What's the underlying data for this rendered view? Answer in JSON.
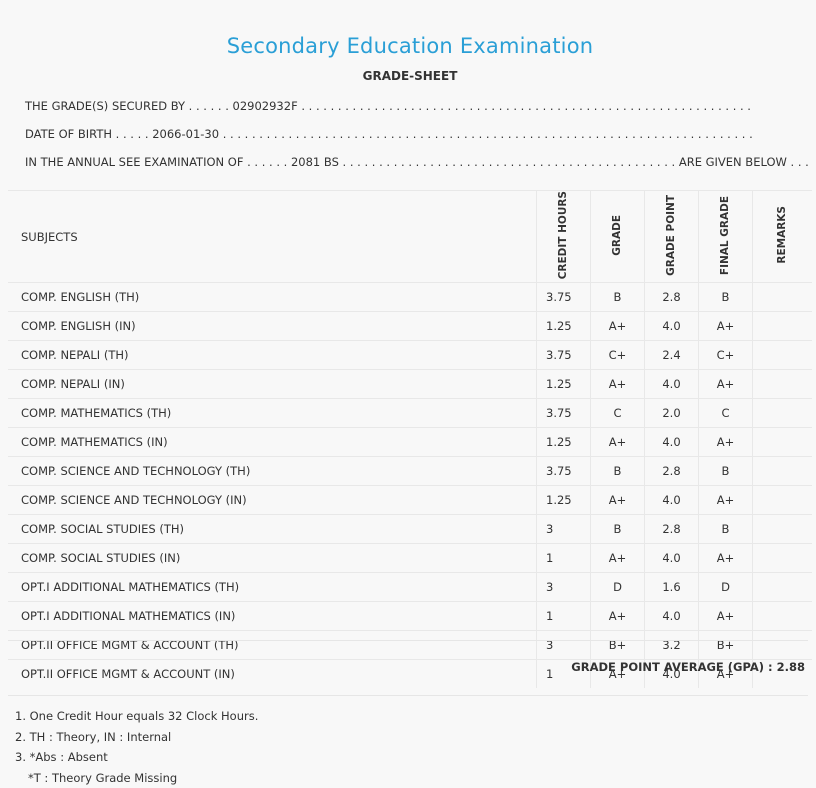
{
  "header": {
    "title": "Secondary Education Examination",
    "subtitle": "GRADE-SHEET"
  },
  "info": {
    "line1": "THE GRADE(S) SECURED BY . . . . . . 02902932F . . . . . . . . . . . . . . . . . . . . . . . . . . . . . . . . . . . . . . . . . . . . . . . . . . . . . . . . . . . . . .",
    "line2": "DATE OF BIRTH . . . . . 2066-01-30 . . . . . . . . . . . . . . . . . . . . . . . . . . . . . . . . . . . . . . . . . . . . . . . . . . . . . . . . . . . . . . . . . . . . . . . . .",
    "line3": "IN THE ANNUAL SEE EXAMINATION OF . . . . . . 2081 BS . . . . . . . . . . . . . . . . . . . . . . . . . . . . . . . . . . . . . . . . . . . . . . ARE GIVEN BELOW . . ."
  },
  "table": {
    "headers": {
      "subjects": "SUBJECTS",
      "credit_hours": "CREDIT HOURS",
      "grade": "GRADE",
      "grade_point": "GRADE POINT",
      "final_grade": "FINAL GRADE",
      "remarks": "REMARKS"
    },
    "rows": [
      {
        "subject": "COMP. ENGLISH (TH)",
        "credit": "3.75",
        "grade": "B",
        "point": "2.8",
        "final": "B",
        "remarks": ""
      },
      {
        "subject": "COMP. ENGLISH (IN)",
        "credit": "1.25",
        "grade": "A+",
        "point": "4.0",
        "final": "A+",
        "remarks": ""
      },
      {
        "subject": "COMP. NEPALI (TH)",
        "credit": "3.75",
        "grade": "C+",
        "point": "2.4",
        "final": "C+",
        "remarks": ""
      },
      {
        "subject": "COMP. NEPALI (IN)",
        "credit": "1.25",
        "grade": "A+",
        "point": "4.0",
        "final": "A+",
        "remarks": ""
      },
      {
        "subject": "COMP. MATHEMATICS (TH)",
        "credit": "3.75",
        "grade": "C",
        "point": "2.0",
        "final": "C",
        "remarks": ""
      },
      {
        "subject": "COMP. MATHEMATICS (IN)",
        "credit": "1.25",
        "grade": "A+",
        "point": "4.0",
        "final": "A+",
        "remarks": ""
      },
      {
        "subject": "COMP. SCIENCE AND TECHNOLOGY (TH)",
        "credit": "3.75",
        "grade": "B",
        "point": "2.8",
        "final": "B",
        "remarks": ""
      },
      {
        "subject": "COMP. SCIENCE AND TECHNOLOGY (IN)",
        "credit": "1.25",
        "grade": "A+",
        "point": "4.0",
        "final": "A+",
        "remarks": ""
      },
      {
        "subject": "COMP. SOCIAL STUDIES (TH)",
        "credit": "3",
        "grade": "B",
        "point": "2.8",
        "final": "B",
        "remarks": ""
      },
      {
        "subject": "COMP. SOCIAL STUDIES (IN)",
        "credit": "1",
        "grade": "A+",
        "point": "4.0",
        "final": "A+",
        "remarks": ""
      },
      {
        "subject": "OPT.I ADDITIONAL MATHEMATICS (TH)",
        "credit": "3",
        "grade": "D",
        "point": "1.6",
        "final": "D",
        "remarks": ""
      },
      {
        "subject": "OPT.I ADDITIONAL MATHEMATICS (IN)",
        "credit": "1",
        "grade": "A+",
        "point": "4.0",
        "final": "A+",
        "remarks": ""
      },
      {
        "subject": "OPT.II OFFICE MGMT & ACCOUNT (TH)",
        "credit": "3",
        "grade": "B+",
        "point": "3.2",
        "final": "B+",
        "remarks": ""
      },
      {
        "subject": "OPT.II OFFICE MGMT & ACCOUNT (IN)",
        "credit": "1",
        "grade": "A+",
        "point": "4.0",
        "final": "A+",
        "remarks": ""
      }
    ]
  },
  "gpa": {
    "label": "GRADE POINT AVERAGE (GPA) :",
    "value": "2.88"
  },
  "notes": [
    "1. One Credit Hour equals 32 Clock Hours.",
    "2. TH : Theory, IN : Internal",
    "3. *Abs : Absent",
    "*T : Theory Grade Missing"
  ]
}
